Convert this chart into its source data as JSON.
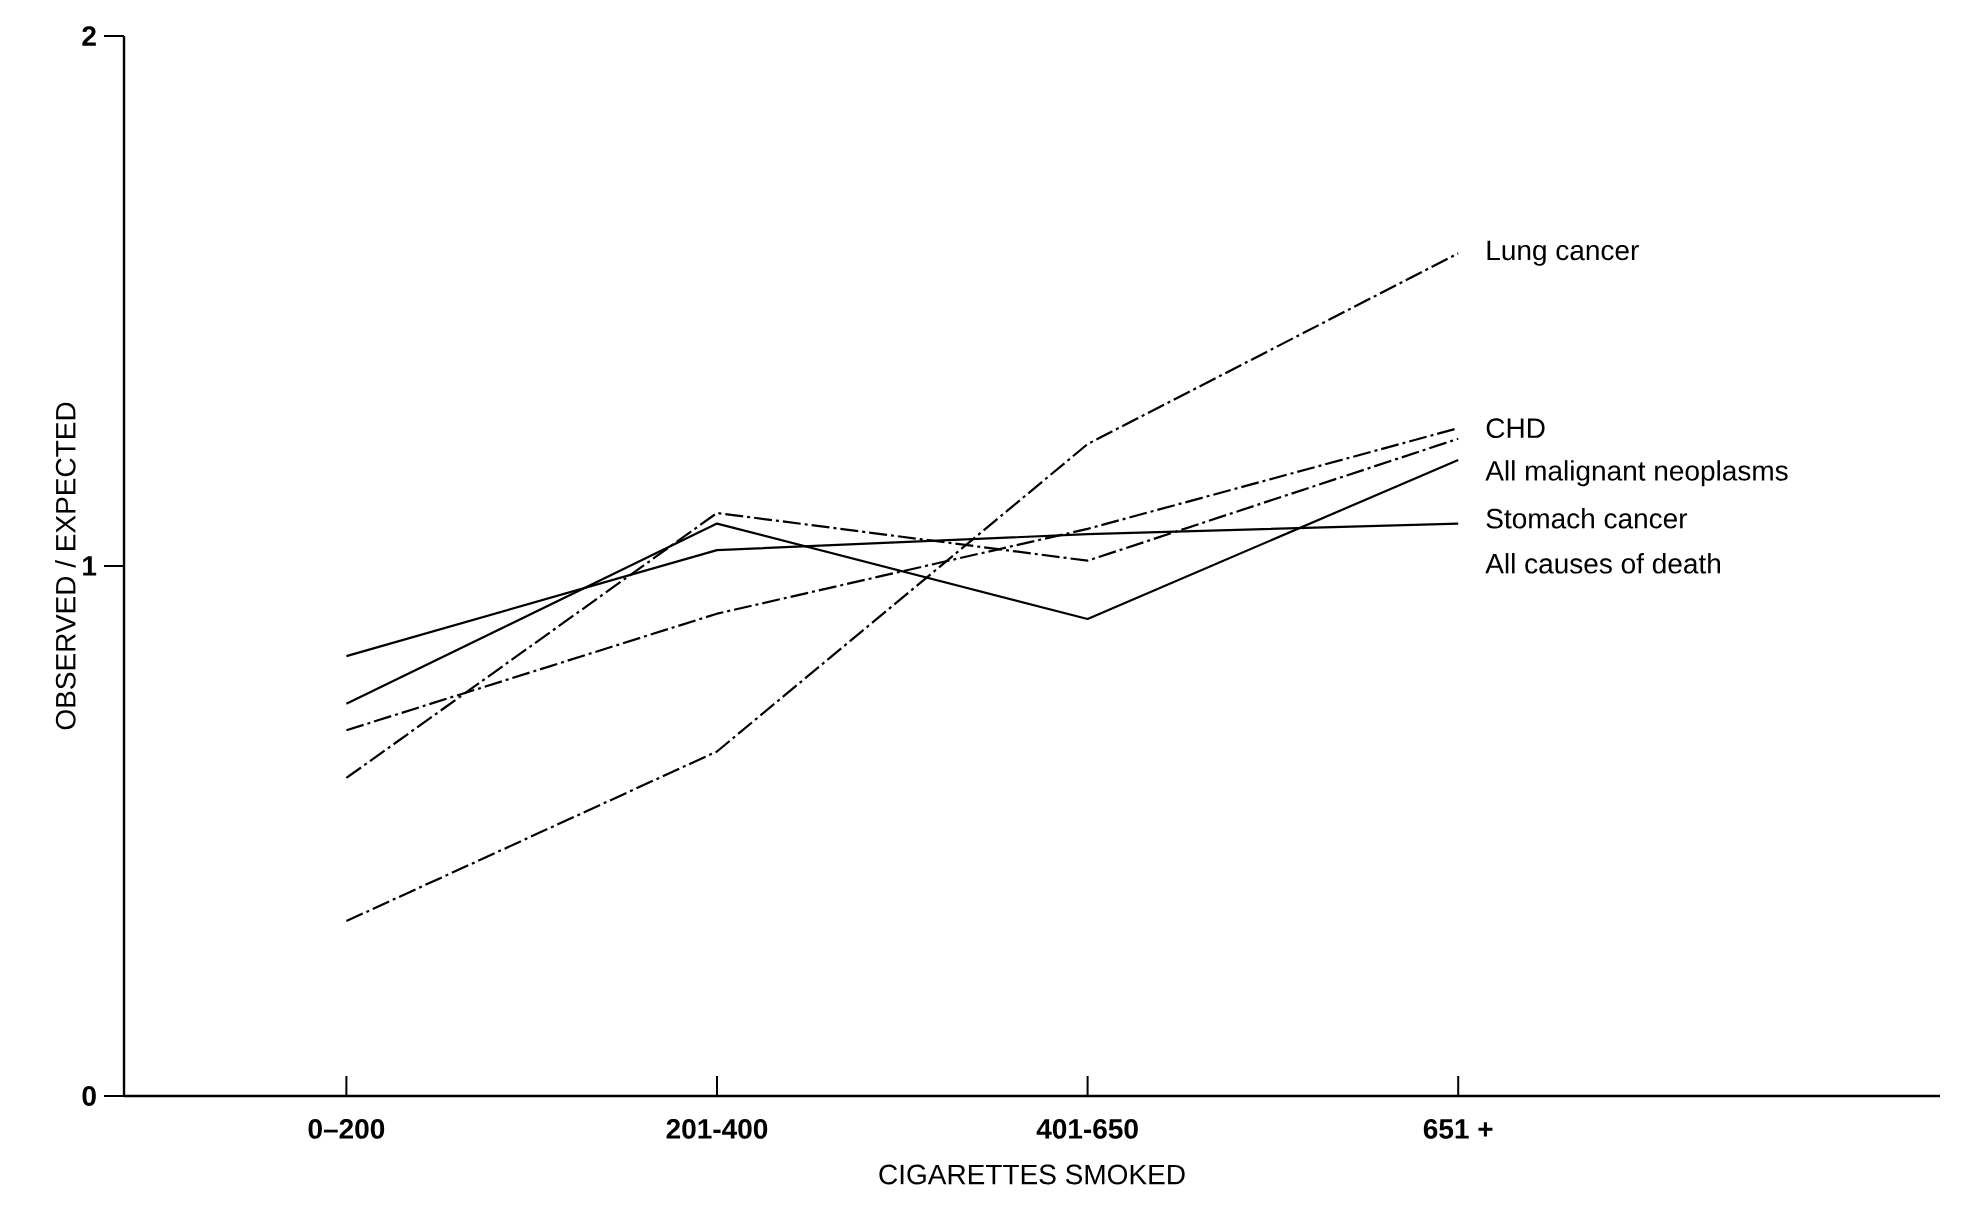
{
  "chart_data": {
    "type": "line",
    "xlabel": "CIGARETTES SMOKED",
    "ylabel": "OBSERVED / EXPECTED",
    "categories": [
      "0–200",
      "201-400",
      "401-650",
      "651 +"
    ],
    "ylim": [
      0,
      2
    ],
    "yticks": [
      0,
      1,
      2
    ],
    "grid": false,
    "legend": false,
    "marker": "none",
    "series": [
      {
        "name": "Lung cancer",
        "color": "#000000",
        "line_style": "dashed",
        "values": [
          0.33,
          0.65,
          1.23,
          1.59
        ]
      },
      {
        "name": "All malignant neoplasms",
        "color": "#000000",
        "line_style": "dashed",
        "values": [
          0.6,
          1.1,
          1.01,
          1.24
        ]
      },
      {
        "name": "CHD",
        "color": "#000000",
        "line_style": "dashed",
        "values": [
          0.69,
          0.91,
          1.07,
          1.26
        ]
      },
      {
        "name": "Stomach cancer",
        "color": "#000000",
        "line_style": "solid",
        "values": [
          0.74,
          1.08,
          0.9,
          1.2
        ]
      },
      {
        "name": "All causes of death",
        "color": "#000000",
        "line_style": "solid",
        "values": [
          0.83,
          1.03,
          1.06,
          1.08
        ]
      }
    ]
  }
}
